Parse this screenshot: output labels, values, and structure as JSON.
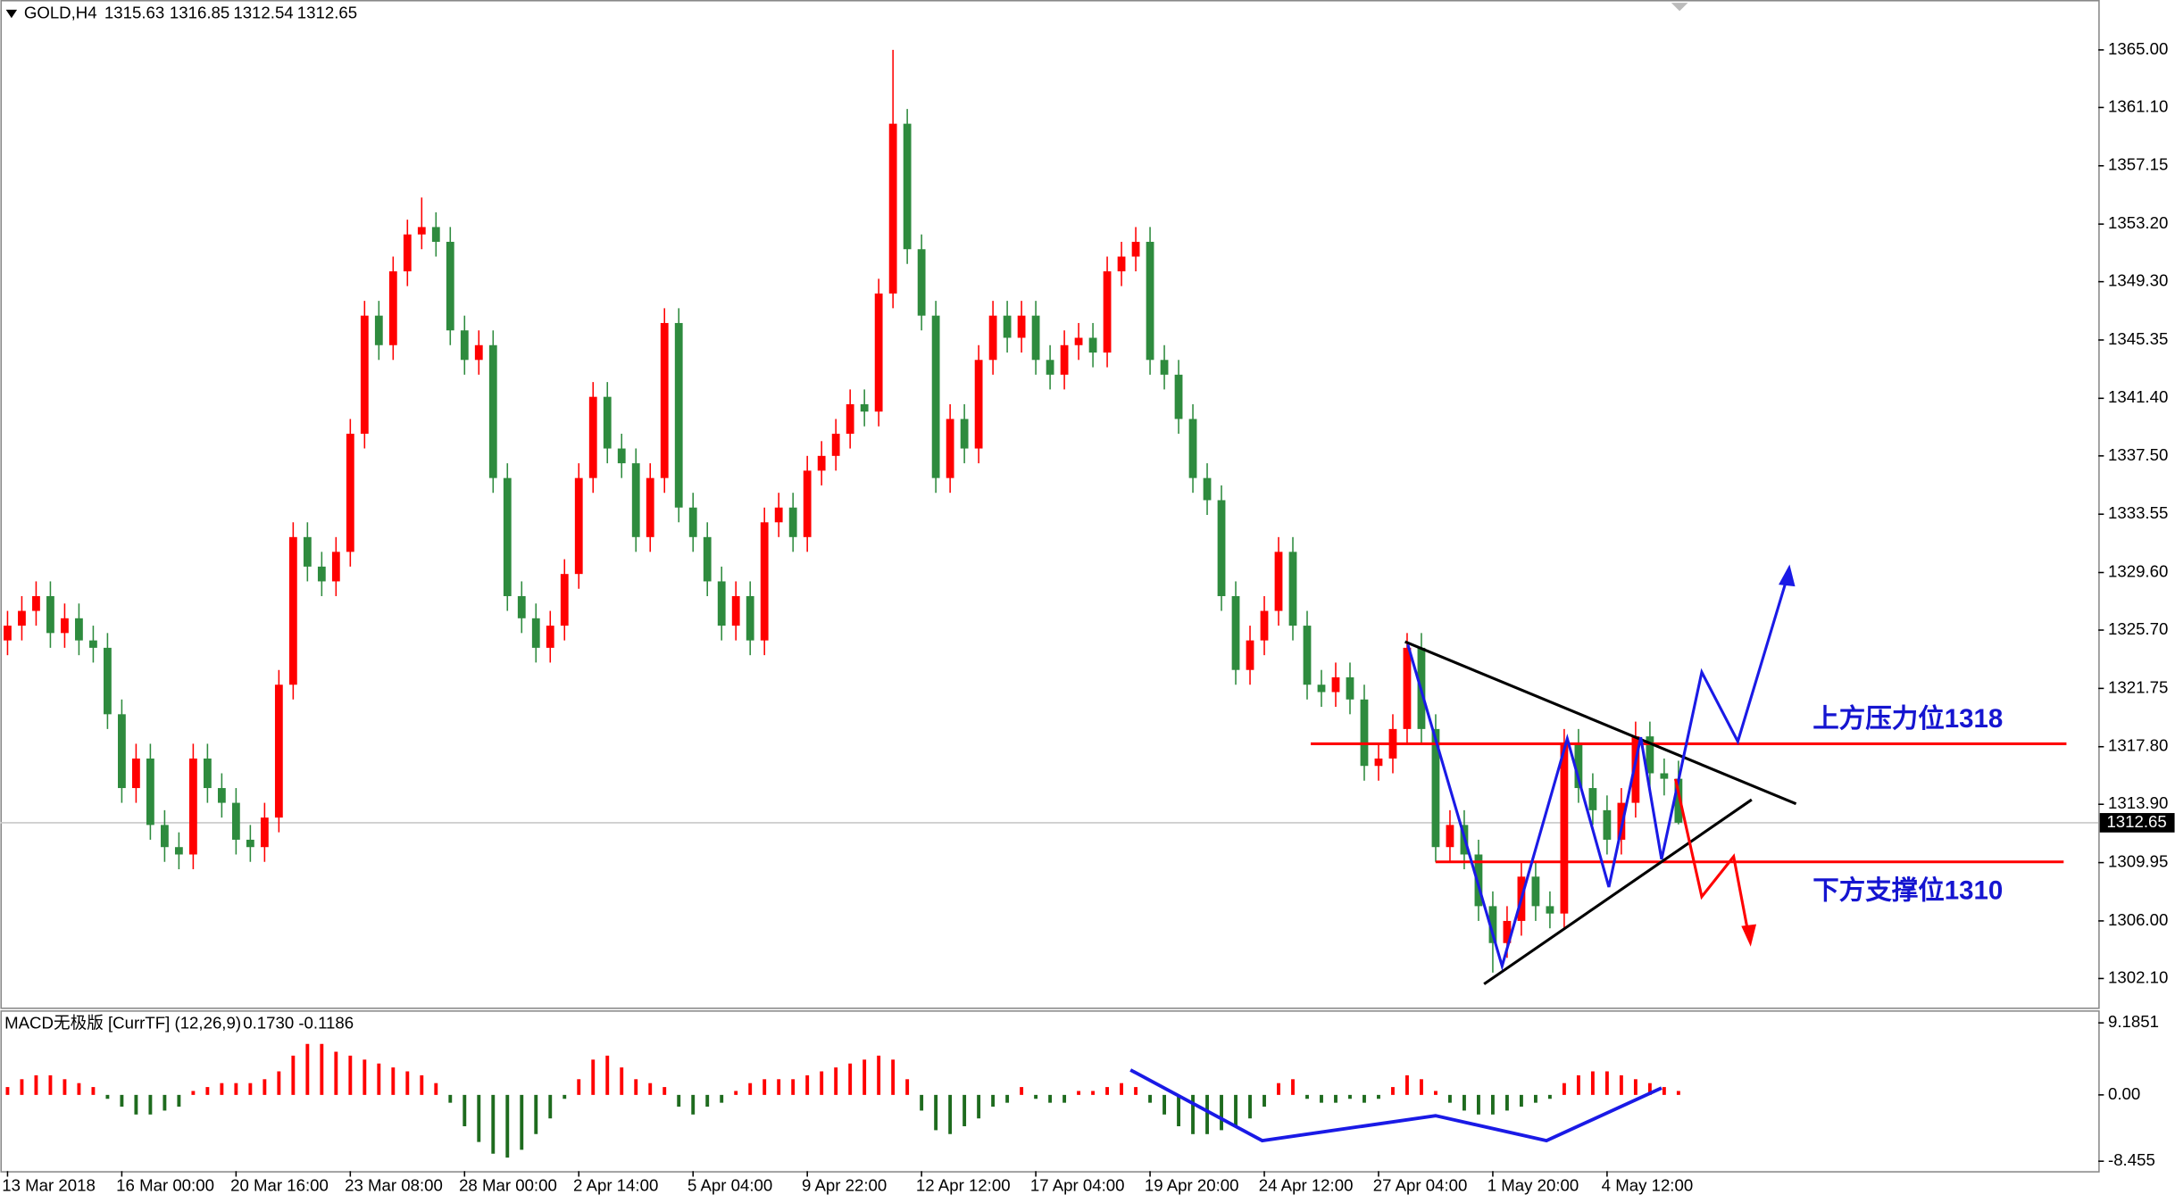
{
  "chart_data": [
    {
      "type": "candlestick",
      "title": "GOLD,H4",
      "up_color": "#ff0000",
      "down_color": "#2e8b3e",
      "xlim": [
        -0.5,
        146.4
      ],
      "xticks": [
        {
          "value": 0,
          "label": "13 Mar 2018"
        },
        {
          "value": 8,
          "label": "16 Mar 00:00"
        },
        {
          "value": 16,
          "label": "20 Mar 16:00"
        },
        {
          "value": 24,
          "label": "23 Mar 08:00"
        },
        {
          "value": 32,
          "label": "28 Mar 00:00"
        },
        {
          "value": 40,
          "label": "2 Apr 14:00"
        },
        {
          "value": 48,
          "label": "5 Apr 04:00"
        },
        {
          "value": 56,
          "label": "9 Apr 22:00"
        },
        {
          "value": 64,
          "label": "12 Apr 12:00"
        },
        {
          "value": 72,
          "label": "17 Apr 04:00"
        },
        {
          "value": 80,
          "label": "19 Apr 20:00"
        },
        {
          "value": 88,
          "label": "24 Apr 12:00"
        },
        {
          "value": 96,
          "label": "27 Apr 04:00"
        },
        {
          "value": 104,
          "label": "1 May 20:00"
        },
        {
          "value": 112,
          "label": "4 May 12:00"
        }
      ],
      "ylim": [
        1300.13,
        1368.38
      ],
      "yticks": [
        {
          "value": 1365,
          "label": "1365.00"
        },
        {
          "value": 1361.1,
          "label": "1361.10"
        },
        {
          "value": 1357.15,
          "label": "1357.15"
        },
        {
          "value": 1353.2,
          "label": "1353.20"
        },
        {
          "value": 1349.3,
          "label": "1349.30"
        },
        {
          "value": 1345.35,
          "label": "1345.35"
        },
        {
          "value": 1341.4,
          "label": "1341.40"
        },
        {
          "value": 1337.5,
          "label": "1337.50"
        },
        {
          "value": 1333.55,
          "label": "1333.55"
        },
        {
          "value": 1329.6,
          "label": "1329.60"
        },
        {
          "value": 1325.7,
          "label": "1325.70"
        },
        {
          "value": 1321.75,
          "label": "1321.75"
        },
        {
          "value": 1317.8,
          "label": "1317.80"
        },
        {
          "value": 1313.9,
          "label": "1313.90"
        },
        {
          "value": 1309.95,
          "label": "1309.95"
        },
        {
          "value": 1306,
          "label": "1306.00"
        },
        {
          "value": 1302.1,
          "label": "1302.10"
        }
      ],
      "open": [
        1325,
        1326,
        1327,
        1328,
        1325.5,
        1326.5,
        1325,
        1324.5,
        1320,
        1315,
        1317,
        1312.5,
        1311,
        1310.5,
        1317,
        1315,
        1314,
        1311.5,
        1311,
        1313,
        1322,
        1332,
        1330,
        1329,
        1331,
        1339,
        1347,
        1345,
        1350,
        1352.5,
        1353,
        1352,
        1346,
        1344,
        1345,
        1336,
        1328,
        1326.5,
        1324.5,
        1326,
        1329.5,
        1336,
        1341.5,
        1338,
        1337,
        1332,
        1336,
        1346.5,
        1334,
        1332,
        1329,
        1326,
        1328,
        1325,
        1333,
        1334,
        1332,
        1336.5,
        1337.5,
        1339,
        1341,
        1340.5,
        1348.5,
        1360,
        1351.5,
        1347,
        1336,
        1340,
        1338,
        1344,
        1347,
        1345.5,
        1347,
        1344,
        1343,
        1345,
        1345.5,
        1344.5,
        1350,
        1351,
        1352,
        1344,
        1343,
        1340,
        1336,
        1334.5,
        1328,
        1323,
        1325,
        1327,
        1331,
        1326,
        1322,
        1321.5,
        1322.5,
        1321,
        1316.5,
        1317,
        1319,
        1324.5,
        1319,
        1311,
        1312.5,
        1310.5,
        1307,
        1304.5,
        1306,
        1309,
        1307,
        1306.5,
        1318,
        1315,
        1313.5,
        1311.5,
        1314,
        1318.5,
        1316,
        1315.63
      ],
      "high": [
        1327,
        1328,
        1329,
        1329,
        1327.5,
        1327.5,
        1326,
        1325.5,
        1321,
        1318,
        1318,
        1313.5,
        1312,
        1318,
        1318,
        1316,
        1315,
        1312.5,
        1314,
        1323,
        1333,
        1333,
        1331,
        1332,
        1340,
        1348,
        1348,
        1351,
        1353.5,
        1355,
        1354,
        1353,
        1347,
        1346,
        1346,
        1337,
        1329,
        1327.5,
        1327,
        1330.5,
        1337,
        1342.5,
        1342.5,
        1339,
        1338,
        1337,
        1347.5,
        1347.5,
        1335,
        1333,
        1330,
        1329,
        1329,
        1334,
        1335,
        1335,
        1337.5,
        1338.5,
        1340,
        1342,
        1342,
        1349.5,
        1365,
        1361,
        1352.5,
        1348,
        1341,
        1341,
        1345,
        1348,
        1348,
        1348,
        1348,
        1345,
        1346,
        1346.5,
        1346.5,
        1351,
        1352,
        1353,
        1353,
        1345,
        1344,
        1341,
        1337,
        1335.5,
        1329,
        1326,
        1328,
        1332,
        1332,
        1327,
        1323,
        1323.5,
        1323.5,
        1322,
        1318,
        1320,
        1325.5,
        1325.5,
        1320,
        1313.5,
        1313.5,
        1311.5,
        1308,
        1307,
        1310,
        1310,
        1308,
        1319,
        1319,
        1316,
        1314.5,
        1315,
        1319.5,
        1319.5,
        1317,
        1316.85
      ],
      "low": [
        1324,
        1325,
        1326,
        1324.5,
        1324.5,
        1324,
        1323.5,
        1319,
        1314,
        1314,
        1311.5,
        1310,
        1309.5,
        1309.5,
        1314,
        1313,
        1310.5,
        1310,
        1310,
        1312,
        1321,
        1329,
        1328,
        1328,
        1330,
        1338,
        1344,
        1344,
        1349,
        1351.5,
        1351,
        1345,
        1343,
        1343,
        1335,
        1327,
        1325.5,
        1323.5,
        1323.5,
        1325,
        1328.5,
        1335,
        1337,
        1336,
        1331,
        1331,
        1335,
        1333,
        1331,
        1328,
        1325,
        1325,
        1324,
        1324,
        1332,
        1331,
        1331,
        1335.5,
        1336.5,
        1338,
        1339.5,
        1339.5,
        1347.5,
        1350.5,
        1346,
        1335,
        1335,
        1337,
        1337,
        1343,
        1344.5,
        1344.5,
        1343,
        1342,
        1342,
        1344,
        1343.5,
        1343.5,
        1349,
        1350,
        1343,
        1342,
        1339,
        1335,
        1333.5,
        1327,
        1322,
        1322,
        1324,
        1326,
        1325,
        1321,
        1320.5,
        1320.5,
        1320,
        1315.5,
        1315.5,
        1316,
        1318,
        1318,
        1310,
        1310,
        1309.5,
        1306,
        1302.5,
        1303.5,
        1305,
        1306,
        1305.5,
        1305.5,
        1314,
        1312.5,
        1310.5,
        1310.5,
        1313,
        1315,
        1314.5,
        1312.54
      ],
      "close": [
        1326,
        1327,
        1328,
        1325.5,
        1326.5,
        1325,
        1324.5,
        1320,
        1315,
        1317,
        1312.5,
        1311,
        1310.5,
        1317,
        1315,
        1314,
        1311.5,
        1311,
        1313,
        1322,
        1332,
        1330,
        1329,
        1331,
        1339,
        1347,
        1345,
        1350,
        1352.5,
        1353,
        1352,
        1346,
        1344,
        1345,
        1336,
        1328,
        1326.5,
        1324.5,
        1326,
        1329.5,
        1336,
        1341.5,
        1338,
        1337,
        1332,
        1336,
        1346.5,
        1334,
        1332,
        1329,
        1326,
        1328,
        1325,
        1333,
        1334,
        1332,
        1336.5,
        1337.5,
        1339,
        1341,
        1340.5,
        1348.5,
        1360,
        1351.5,
        1347,
        1336,
        1340,
        1338,
        1344,
        1347,
        1345.5,
        1347,
        1344,
        1343,
        1345,
        1345.5,
        1344.5,
        1350,
        1351,
        1352,
        1344,
        1343,
        1340,
        1336,
        1334.5,
        1328,
        1323,
        1325,
        1327,
        1331,
        1326,
        1322,
        1321.5,
        1322.5,
        1321,
        1316.5,
        1317,
        1319,
        1324.5,
        1319,
        1311,
        1312.5,
        1310.5,
        1307,
        1304.5,
        1306,
        1309,
        1307,
        1306.5,
        1318,
        1315,
        1313.5,
        1311.5,
        1314,
        1318.5,
        1316,
        1315.63,
        1312.65
      ],
      "levels": [
        {
          "label": "上方压力位1318",
          "value": 1318
        },
        {
          "label": "下方支撑位1310",
          "value": 1310
        }
      ]
    },
    {
      "type": "bar",
      "title": "MACD无极版 [CurrTF] (12,26,9)",
      "header_values": [
        {
          "value": 0.173,
          "label": "0.1730"
        },
        -0.1186
      ],
      "positive_color": "#ff0000",
      "negative_color": "#1e6b1e",
      "xlim": [
        -0.5,
        146.4
      ],
      "ylim": [
        -9.72,
        10.78
      ],
      "yticks": [
        9.1851,
        {
          "value": 0,
          "label": "0.00"
        },
        -8.455
      ],
      "values": [
        1,
        2,
        2.5,
        2.5,
        2,
        1.5,
        1,
        -0.5,
        -1.5,
        -2.5,
        -2.5,
        -2,
        -1.5,
        0.5,
        1,
        1.5,
        1.5,
        1.5,
        2,
        3,
        5,
        6.5,
        6.5,
        5.5,
        5,
        4.5,
        4,
        3.5,
        3,
        2.5,
        1.5,
        -1,
        -4,
        -6,
        -7.5,
        -8,
        -7,
        -5,
        -3,
        -0.5,
        2,
        4.5,
        5,
        3.5,
        2,
        1.5,
        1,
        -1.5,
        -2.5,
        -1.5,
        -1,
        0.5,
        1.5,
        2,
        2,
        2,
        2.5,
        3,
        3.5,
        4,
        4.5,
        5,
        4.5,
        2,
        -2,
        -4.5,
        -5,
        -4,
        -3,
        -1.5,
        -1,
        1,
        -0.5,
        -1,
        -1,
        0.5,
        0.5,
        1,
        1.5,
        1,
        -1,
        -2.5,
        -4,
        -5,
        -5,
        -4.5,
        -4,
        -3,
        -1.5,
        1.5,
        2,
        -0.5,
        -1,
        -1,
        -0.5,
        -1,
        -0.5,
        1,
        2.5,
        2,
        0.5,
        -1,
        -2,
        -2.5,
        -2.5,
        -2,
        -1.5,
        -1,
        -0.5,
        1.5,
        2.5,
        3,
        3,
        2.5,
        2,
        1.5,
        1,
        0.5
      ]
    }
  ]
}
